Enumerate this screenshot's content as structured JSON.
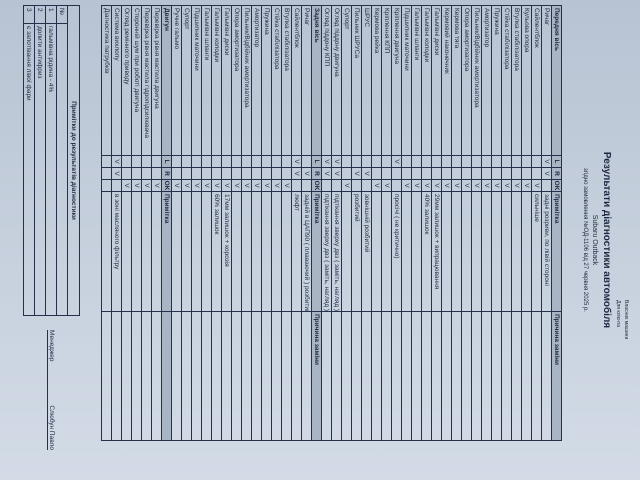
{
  "header": {
    "title": "Результати діагностики автомобіля",
    "car": "Subaru Outback",
    "order": "згідно замовлення №ОД-1106 від 27 червня 2025 р.",
    "owner_label": "Власник машини",
    "client_label": "Для клієнта"
  },
  "columns": {
    "l": "L",
    "r": "R",
    "ok": "OK",
    "note": "Примітка",
    "reason": "Причина заміни"
  },
  "sections": [
    {
      "title": "Передня вісь",
      "rows": [
        {
          "name": "Ричаг",
          "l": "V",
          "r": "V",
          "ok": "",
          "note": "задні розриви, по лівій стороні"
        },
        {
          "name": "Сайлентблок",
          "l": "",
          "r": "",
          "ok": "V",
          "note": "сильніше"
        },
        {
          "name": "Кульова опора",
          "l": "",
          "r": "",
          "ok": "V",
          "note": ""
        },
        {
          "name": "Втулка стабілізатора",
          "l": "",
          "r": "",
          "ok": "V",
          "note": ""
        },
        {
          "name": "Стійка стабілізатора",
          "l": "",
          "r": "",
          "ok": "V",
          "note": ""
        },
        {
          "name": "Пружина",
          "l": "",
          "r": "",
          "ok": "V",
          "note": ""
        },
        {
          "name": "Амортизатор",
          "l": "",
          "r": "",
          "ok": "V",
          "note": ""
        },
        {
          "name": "Пильник/Відбійник амортизатора",
          "l": "",
          "r": "",
          "ok": "V",
          "note": ""
        },
        {
          "name": "Опора амортизатора",
          "l": "",
          "r": "",
          "ok": "V",
          "note": ""
        },
        {
          "name": "Кермова тяга",
          "l": "",
          "r": "",
          "ok": "V",
          "note": ""
        },
        {
          "name": "Кермовий наконечник",
          "l": "",
          "r": "",
          "ok": "V",
          "note": ""
        },
        {
          "name": "Гальмівні диски",
          "l": "",
          "r": "",
          "ok": "V",
          "note": "29мм залишок + випрацювання"
        },
        {
          "name": "Гальмівні колодки",
          "l": "",
          "r": "",
          "ok": "V",
          "note": "40% залишок"
        },
        {
          "name": "Гальмівні шланги",
          "l": "",
          "r": "",
          "ok": "V",
          "note": ""
        },
        {
          "name": "Підшипник маточини",
          "l": "",
          "r": "",
          "ok": "V",
          "note": ""
        },
        {
          "name": "Кріплення двигуна",
          "l": "V",
          "r": "",
          "ok": "",
          "note": "просічі ( не критично)"
        },
        {
          "name": "Кріплення КПП",
          "l": "",
          "r": "",
          "ok": "V",
          "note": ""
        },
        {
          "name": "Кермова рейка",
          "l": "",
          "r": "",
          "ok": "V",
          "note": ""
        },
        {
          "name": "ШРУС",
          "l": "",
          "r": "V",
          "ok": "",
          "note": "зовнішній розбитий"
        },
        {
          "name": "Пильник ШРУСа",
          "l": "",
          "r": "V",
          "ok": "",
          "note": "розбитий"
        },
        {
          "name": "Супорт",
          "l": "",
          "r": "",
          "ok": "V",
          "note": ""
        },
        {
          "name": "Огляд піддону двигуна",
          "l": "V",
          "r": "V",
          "ok": "",
          "note": "підтікання зверху двз ( заміть, нагляд )"
        },
        {
          "name": "Огляд піддону КПП",
          "l": "V",
          "r": "V",
          "ok": "",
          "note": "підтікання зверху двз ( заміть, нагляд )"
        }
      ]
    },
    {
      "title": "Задня вісь",
      "rows": [
        {
          "name": "Ричаг",
          "l": "",
          "r": "V",
          "ok": "",
          "note": "задній в ЦАП90 ( плаваючий ) розбитий"
        },
        {
          "name": "Сайлентблок",
          "l": "V",
          "r": "V",
          "ok": "",
          "note": "люфт"
        },
        {
          "name": "Втулка стабілізатора",
          "l": "",
          "r": "",
          "ok": "V",
          "note": ""
        },
        {
          "name": "Стійка стабілізатора",
          "l": "",
          "r": "",
          "ok": "V",
          "note": ""
        },
        {
          "name": "Пружина",
          "l": "",
          "r": "",
          "ok": "V",
          "note": ""
        },
        {
          "name": "Амортизатор",
          "l": "",
          "r": "",
          "ok": "V",
          "note": ""
        },
        {
          "name": "Пильник/Відбійник амортизатора",
          "l": "",
          "r": "",
          "ok": "V",
          "note": ""
        },
        {
          "name": "Опора амортизатора",
          "l": "",
          "r": "",
          "ok": "V",
          "note": ""
        },
        {
          "name": "Гальмівні диски",
          "l": "",
          "r": "",
          "ok": "V",
          "note": "17мм залишок + корозія"
        },
        {
          "name": "Гальмівні колодки",
          "l": "",
          "r": "",
          "ok": "V",
          "note": "60% залишок"
        },
        {
          "name": "Гальмівні шланги",
          "l": "",
          "r": "",
          "ok": "V",
          "note": ""
        },
        {
          "name": "Підшипник маточини",
          "l": "",
          "r": "",
          "ok": "V",
          "note": ""
        },
        {
          "name": "Супорт",
          "l": "",
          "r": "",
          "ok": "V",
          "note": ""
        },
        {
          "name": "Ручне гальмо",
          "l": "",
          "r": "",
          "ok": "V",
          "note": ""
        }
      ]
    },
    {
      "title": "Двигун",
      "rows": [
        {
          "name": "Перевірка рівня мастила двигуна",
          "l": "",
          "r": "",
          "ok": "V",
          "note": ""
        },
        {
          "name": "Перевірка рівня мастила гідропідсилювача",
          "l": "",
          "r": "",
          "ok": "V",
          "note": ""
        },
        {
          "name": "Сторонній шум при роботі двигуна",
          "l": "",
          "r": "",
          "ok": "V",
          "note": ""
        },
        {
          "name": "Огляд ремінного приводу",
          "l": "",
          "r": "",
          "ok": "V",
          "note": ""
        },
        {
          "name": "Система вихлопу",
          "l": "V",
          "r": "V",
          "ok": "",
          "note": "в зоні масляного фільтру"
        },
        {
          "name": "Діагностика патрубків",
          "l": "",
          "r": "",
          "ok": "",
          "note": ""
        }
      ]
    }
  ],
  "notes": {
    "title": "Примітки до результатів діагностики",
    "no_label": "№",
    "items": [
      {
        "no": "1",
        "text": "гальмівна рідина - 4%"
      },
      {
        "no": "2",
        "text": "долити антифриз"
      },
      {
        "no": "3",
        "text": "є запотівання лівої фари"
      }
    ]
  },
  "signature": {
    "label": "Менеджер",
    "name": "Слюбун Павло"
  }
}
